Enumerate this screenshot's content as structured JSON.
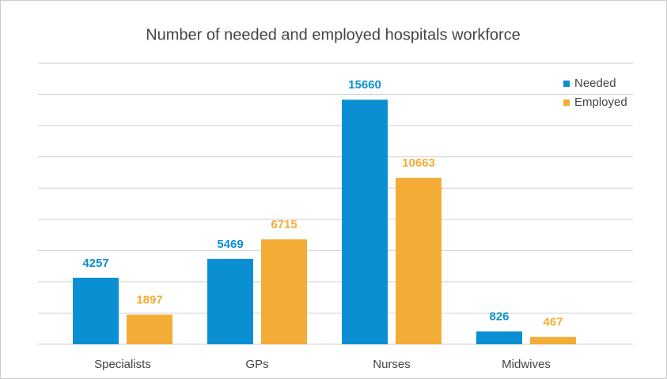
{
  "chart_data": {
    "type": "bar",
    "title": "Number of needed and employed hospitals workforce",
    "categories": [
      "Specialists",
      "GPs",
      "Nurses",
      "Midwives"
    ],
    "series": [
      {
        "name": "Needed",
        "color": "#0b8fd3",
        "values": [
          4257,
          5469,
          15660,
          826
        ]
      },
      {
        "name": "Employed",
        "color": "#f3ad36",
        "values": [
          1897,
          6715,
          10663,
          467
        ]
      }
    ],
    "ylim": [
      0,
      18000
    ],
    "yticks": [
      0,
      2000,
      4000,
      6000,
      8000,
      10000,
      12000,
      14000,
      16000,
      18000
    ],
    "grid": true,
    "legend": "top-right"
  }
}
